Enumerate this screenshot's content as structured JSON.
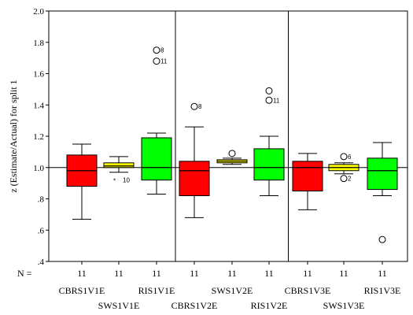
{
  "chart_data": {
    "type": "boxplot",
    "ylabel": "z (Estimate/Actual) for split 1",
    "ylim": [
      0.4,
      2.0
    ],
    "yticks": [
      {
        "v": 2.0,
        "label": "2.0"
      },
      {
        "v": 1.8,
        "label": "1.8"
      },
      {
        "v": 1.6,
        "label": "1.6"
      },
      {
        "v": 1.4,
        "label": "1.4"
      },
      {
        "v": 1.2,
        "label": "1.2"
      },
      {
        "v": 1.0,
        "label": "1.0"
      },
      {
        "v": 0.8,
        "label": ".8"
      },
      {
        "v": 0.6,
        "label": ".6"
      },
      {
        "v": 0.4,
        "label": ".4"
      }
    ],
    "reference_line": 1.0,
    "n_label": "N =",
    "colors": {
      "CBR": "#ff0000",
      "SWS": "#ffff00",
      "RIS": "#00ff00"
    },
    "boxes": [
      {
        "category": "CBRS1V1E",
        "n": "11",
        "group": "CBR",
        "whisker_low": 0.67,
        "q1": 0.88,
        "median": 0.98,
        "q3": 1.08,
        "whisker_high": 1.15,
        "outliers": []
      },
      {
        "category": "SWS1V1E",
        "n": "11",
        "group": "SWS",
        "whisker_low": 0.97,
        "q1": 1.0,
        "median": 1.01,
        "q3": 1.03,
        "whisker_high": 1.07,
        "outliers": [
          {
            "value": 0.92,
            "label": "10",
            "marker": "star"
          }
        ]
      },
      {
        "category": "RIS1V1E",
        "n": "11",
        "group": "RIS",
        "whisker_low": 0.83,
        "q1": 0.92,
        "median": 1.0,
        "q3": 1.19,
        "whisker_high": 1.22,
        "outliers": [
          {
            "value": 1.75,
            "label": "8",
            "marker": "circle"
          },
          {
            "value": 1.68,
            "label": "11",
            "marker": "circle"
          }
        ]
      },
      {
        "category": "CBRS1V2E",
        "n": "11",
        "group": "CBR",
        "whisker_low": 0.68,
        "q1": 0.82,
        "median": 0.98,
        "q3": 1.04,
        "whisker_high": 1.26,
        "outliers": [
          {
            "value": 1.39,
            "label": "8",
            "marker": "circle"
          }
        ]
      },
      {
        "category": "SWS1V2E",
        "n": "11",
        "group": "SWS",
        "whisker_low": 1.02,
        "q1": 1.03,
        "median": 1.04,
        "q3": 1.05,
        "whisker_high": 1.06,
        "outliers": [
          {
            "value": 1.09,
            "label": "",
            "marker": "circle"
          }
        ]
      },
      {
        "category": "RIS1V2E",
        "n": "11",
        "group": "RIS",
        "whisker_low": 0.82,
        "q1": 0.92,
        "median": 1.0,
        "q3": 1.12,
        "whisker_high": 1.2,
        "outliers": [
          {
            "value": 1.49,
            "label": "",
            "marker": "circle"
          },
          {
            "value": 1.43,
            "label": "11",
            "marker": "circle"
          }
        ]
      },
      {
        "category": "CBRS1V3E",
        "n": "11",
        "group": "CBR",
        "whisker_low": 0.73,
        "q1": 0.85,
        "median": 1.0,
        "q3": 1.04,
        "whisker_high": 1.09,
        "outliers": []
      },
      {
        "category": "SWS1V3E",
        "n": "11",
        "group": "SWS",
        "whisker_low": 0.96,
        "q1": 0.98,
        "median": 1.0,
        "q3": 1.02,
        "whisker_high": 1.03,
        "outliers": [
          {
            "value": 1.07,
            "label": "6",
            "marker": "circle"
          },
          {
            "value": 0.93,
            "label": "2",
            "marker": "circle"
          }
        ]
      },
      {
        "category": "RIS1V3E",
        "n": "11",
        "group": "RIS",
        "whisker_low": 0.82,
        "q1": 0.86,
        "median": 0.98,
        "q3": 1.06,
        "whisker_high": 1.16,
        "outliers": [
          {
            "value": 0.54,
            "label": "",
            "marker": "circle"
          }
        ]
      }
    ]
  }
}
